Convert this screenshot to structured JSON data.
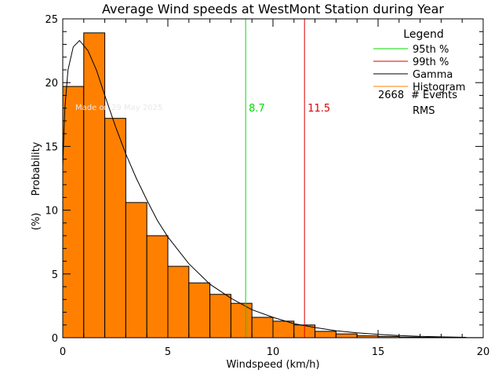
{
  "chart_data": {
    "type": "bar",
    "title": "Average Wind speeds at WestMont Station during Year",
    "xlabel": "Windspeed (km/h)",
    "ylabel": "Probability",
    "ylabel_unit": "(%)",
    "xlim": [
      0,
      20
    ],
    "ylim": [
      0,
      25
    ],
    "x_ticks": [
      "0",
      "5",
      "10",
      "15",
      "20"
    ],
    "y_ticks": [
      "0",
      "5",
      "10",
      "15",
      "20",
      "25"
    ],
    "watermark": "Made on 29 May 2025",
    "histogram": {
      "name": "Histogram",
      "color": "#ff8000",
      "bin_edges": [
        0,
        1,
        2,
        3,
        4,
        5,
        6,
        7,
        8,
        9,
        10,
        11,
        12,
        13,
        14,
        15,
        16,
        17,
        18,
        19,
        20
      ],
      "values": [
        19.7,
        23.9,
        17.2,
        10.6,
        8.0,
        5.6,
        4.3,
        3.4,
        2.7,
        1.6,
        1.3,
        1.0,
        0.5,
        0.3,
        0.15,
        0.1,
        0.05,
        0.03,
        0.02,
        0.01
      ]
    },
    "gamma_curve": {
      "name": "Gamma",
      "color": "#000000",
      "x": [
        0,
        0.1,
        0.25,
        0.5,
        0.8,
        1.2,
        1.6,
        2,
        2.5,
        3,
        3.5,
        4,
        4.5,
        5,
        6,
        7,
        8,
        9,
        10,
        11,
        12,
        13,
        14,
        15,
        16,
        17,
        18,
        19.2
      ],
      "y": [
        13.5,
        18.0,
        21.0,
        22.8,
        23.3,
        22.5,
        21.0,
        19.0,
        16.6,
        14.4,
        12.5,
        10.8,
        9.2,
        7.9,
        5.8,
        4.2,
        3.1,
        2.2,
        1.6,
        1.1,
        0.8,
        0.55,
        0.38,
        0.26,
        0.17,
        0.11,
        0.07,
        0.03
      ]
    },
    "percentile_lines": [
      {
        "name": "95th %",
        "value": 8.7,
        "label": "8.7",
        "color": "#00dd00"
      },
      {
        "name": "99th %",
        "value": 11.5,
        "label": "11.5",
        "color": "#dd0000"
      }
    ],
    "legend": {
      "title": "Legend",
      "position": "top-right",
      "entries": [
        {
          "label": "95th %",
          "color": "#00dd00"
        },
        {
          "label": "99th %",
          "color": "#dd0000"
        },
        {
          "label": "Gamma",
          "color": "#000000"
        },
        {
          "label": "Histogram",
          "color": "#ff8000"
        }
      ],
      "events_count": "2668",
      "events_label": "# Events",
      "rms_label": "RMS"
    }
  }
}
